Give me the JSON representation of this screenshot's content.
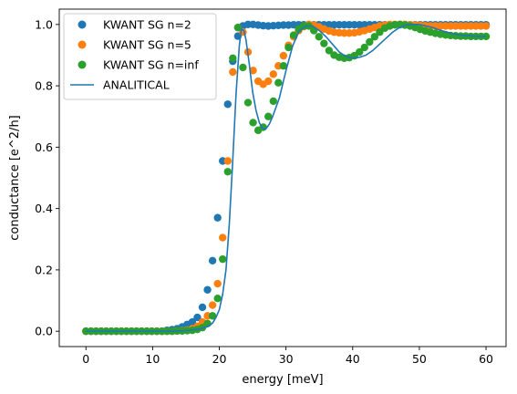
{
  "chart_data": {
    "type": "scatter",
    "xlabel": "energy [meV]",
    "ylabel": "conductance [e^2/h]",
    "xlim": [
      -4,
      63
    ],
    "ylim": [
      -0.05,
      1.05
    ],
    "xticks": [
      0,
      10,
      20,
      30,
      40,
      50,
      60
    ],
    "yticks": [
      0.0,
      0.2,
      0.4,
      0.6,
      0.8,
      1.0
    ],
    "xtick_labels": [
      "0",
      "10",
      "20",
      "30",
      "40",
      "50",
      "60"
    ],
    "ytick_labels": [
      "0.0",
      "0.2",
      "0.4",
      "0.6",
      "0.8",
      "1.0"
    ],
    "grid": false,
    "legend_position": "top-left",
    "x_sampling": {
      "start": 0,
      "stop": 60,
      "count": 80
    },
    "series": [
      {
        "name": "KWANT SG n=2",
        "kind": "scatter",
        "color": "#1f77b4",
        "values": [
          0,
          0,
          0,
          0,
          0,
          0,
          0,
          0,
          0,
          0,
          0,
          0,
          0,
          0,
          0,
          0,
          0.003,
          0.005,
          0.008,
          0.014,
          0.022,
          0.03,
          0.045,
          0.078,
          0.135,
          0.23,
          0.37,
          0.555,
          0.74,
          0.88,
          0.962,
          0.995,
          1.0,
          1.0,
          0.998,
          0.996,
          0.995,
          0.996,
          0.997,
          0.998,
          0.998,
          0.999,
          0.999,
          0.999,
          0.999,
          0.999,
          0.999,
          0.999,
          0.999,
          0.999,
          0.999,
          0.999,
          0.999,
          0.999,
          0.999,
          0.999,
          0.999,
          0.999,
          0.999,
          0.999,
          0.999,
          0.999,
          0.999,
          0.999,
          0.999,
          0.999,
          0.999,
          0.999,
          0.999,
          0.999,
          0.999,
          0.999,
          0.999,
          0.999,
          0.999,
          0.999,
          0.999,
          0.999,
          0.999,
          0.999
        ]
      },
      {
        "name": "KWANT SG n=5",
        "kind": "scatter",
        "color": "#ff7f0e",
        "values": [
          0,
          0,
          0,
          0,
          0,
          0,
          0,
          0,
          0,
          0,
          0,
          0,
          0,
          0,
          0,
          0,
          0,
          0,
          0.001,
          0.002,
          0.004,
          0.008,
          0.016,
          0.03,
          0.05,
          0.085,
          0.155,
          0.305,
          0.555,
          0.845,
          0.99,
          0.975,
          0.91,
          0.85,
          0.815,
          0.805,
          0.815,
          0.838,
          0.865,
          0.898,
          0.932,
          0.96,
          0.98,
          0.993,
          1.0,
          0.998,
          0.992,
          0.985,
          0.979,
          0.975,
          0.973,
          0.972,
          0.972,
          0.973,
          0.976,
          0.98,
          0.985,
          0.99,
          0.995,
          0.998,
          1.0,
          1.0,
          1.0,
          1.0,
          0.999,
          0.998,
          0.997,
          0.996,
          0.995,
          0.995,
          0.995,
          0.995,
          0.995,
          0.995,
          0.995,
          0.995,
          0.995,
          0.995,
          0.995,
          0.995
        ]
      },
      {
        "name": "KWANT SG n=inf",
        "kind": "scatter",
        "color": "#2ca02c",
        "values": [
          0,
          0,
          0,
          0,
          0,
          0,
          0,
          0,
          0,
          0,
          0,
          0,
          0,
          0,
          0,
          0,
          0,
          0,
          0.001,
          0.001,
          0.002,
          0.003,
          0.006,
          0.012,
          0.025,
          0.05,
          0.107,
          0.235,
          0.52,
          0.89,
          0.99,
          0.86,
          0.745,
          0.68,
          0.655,
          0.665,
          0.7,
          0.75,
          0.81,
          0.865,
          0.925,
          0.965,
          0.985,
          0.995,
          0.995,
          0.98,
          0.96,
          0.938,
          0.915,
          0.9,
          0.893,
          0.89,
          0.892,
          0.898,
          0.91,
          0.925,
          0.943,
          0.96,
          0.975,
          0.988,
          0.995,
          0.999,
          1.0,
          0.998,
          0.995,
          0.99,
          0.984,
          0.979,
          0.975,
          0.971,
          0.968,
          0.966,
          0.964,
          0.963,
          0.962,
          0.962,
          0.961,
          0.961,
          0.961,
          0.961
        ]
      },
      {
        "name": "ANALITICAL",
        "kind": "line",
        "color": "#1f77b4",
        "x": [
          0,
          2,
          4,
          6,
          8,
          10,
          12,
          14,
          15,
          16,
          17,
          18,
          18.5,
          19,
          19.5,
          20,
          20.5,
          21,
          21.5,
          22,
          22.5,
          23,
          23.3,
          23.7,
          24,
          24.5,
          25,
          25.5,
          26,
          26.5,
          27,
          27.5,
          28,
          29,
          30,
          31,
          32,
          33,
          34,
          35,
          36,
          37,
          38,
          39,
          40,
          41,
          42,
          43,
          44,
          45,
          46,
          47,
          48,
          49,
          50,
          51,
          52,
          53,
          54,
          55,
          56,
          57,
          58,
          59,
          60
        ],
        "values": [
          0,
          0,
          0,
          0,
          0,
          0,
          0,
          0.001,
          0.002,
          0.004,
          0.007,
          0.013,
          0.018,
          0.027,
          0.045,
          0.07,
          0.12,
          0.2,
          0.35,
          0.55,
          0.77,
          0.93,
          0.985,
          0.98,
          0.95,
          0.87,
          0.78,
          0.72,
          0.68,
          0.66,
          0.66,
          0.675,
          0.7,
          0.76,
          0.85,
          0.93,
          0.98,
          0.995,
          0.995,
          0.98,
          0.96,
          0.935,
          0.91,
          0.895,
          0.89,
          0.893,
          0.9,
          0.915,
          0.935,
          0.955,
          0.975,
          0.99,
          0.998,
          1.0,
          1.0,
          0.995,
          0.99,
          0.982,
          0.976,
          0.97,
          0.966,
          0.964,
          0.962,
          0.961,
          0.961
        ]
      }
    ]
  }
}
